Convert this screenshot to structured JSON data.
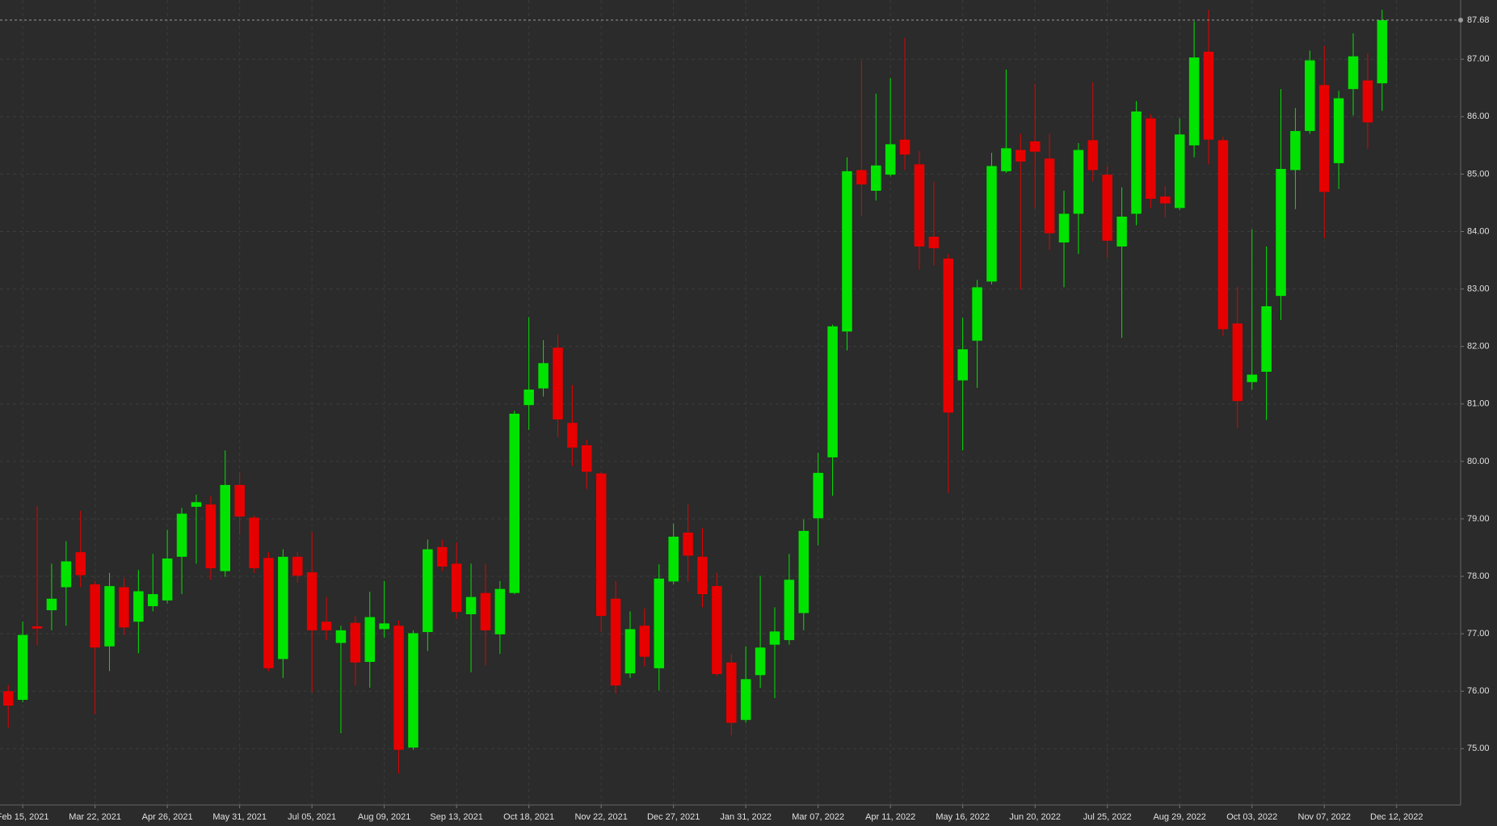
{
  "chart_data": {
    "type": "candlestick",
    "x": [
      "2021-02-08",
      "2021-02-15",
      "2021-02-22",
      "2021-03-01",
      "2021-03-08",
      "2021-03-15",
      "2021-03-22",
      "2021-03-29",
      "2021-04-05",
      "2021-04-12",
      "2021-04-19",
      "2021-04-26",
      "2021-05-03",
      "2021-05-10",
      "2021-05-17",
      "2021-05-24",
      "2021-05-31",
      "2021-06-07",
      "2021-06-14",
      "2021-06-21",
      "2021-06-28",
      "2021-07-05",
      "2021-07-12",
      "2021-07-19",
      "2021-07-26",
      "2021-08-02",
      "2021-08-09",
      "2021-08-16",
      "2021-08-23",
      "2021-08-30",
      "2021-09-06",
      "2021-09-13",
      "2021-09-20",
      "2021-09-27",
      "2021-10-04",
      "2021-10-11",
      "2021-10-18",
      "2021-10-25",
      "2021-11-01",
      "2021-11-08",
      "2021-11-15",
      "2021-11-22",
      "2021-11-29",
      "2021-12-06",
      "2021-12-13",
      "2021-12-20",
      "2021-12-27",
      "2022-01-03",
      "2022-01-10",
      "2022-01-17",
      "2022-01-24",
      "2022-01-31",
      "2022-02-07",
      "2022-02-14",
      "2022-02-21",
      "2022-02-28",
      "2022-03-07",
      "2022-03-14",
      "2022-03-21",
      "2022-03-28",
      "2022-04-04",
      "2022-04-11",
      "2022-04-18",
      "2022-04-25",
      "2022-05-02",
      "2022-05-09",
      "2022-05-16",
      "2022-05-23",
      "2022-05-30",
      "2022-06-06",
      "2022-06-13",
      "2022-06-20",
      "2022-06-27",
      "2022-07-04",
      "2022-07-11",
      "2022-07-18",
      "2022-07-25",
      "2022-08-01",
      "2022-08-08",
      "2022-08-15",
      "2022-08-22",
      "2022-08-29",
      "2022-09-05",
      "2022-09-12",
      "2022-09-19",
      "2022-09-26",
      "2022-10-03",
      "2022-10-10",
      "2022-10-17",
      "2022-10-24",
      "2022-10-31",
      "2022-11-07",
      "2022-11-14",
      "2022-11-21",
      "2022-11-28",
      "2022-12-05"
    ],
    "open": [
      76.0,
      75.85,
      77.13,
      77.41,
      77.81,
      78.42,
      77.86,
      76.78,
      77.81,
      77.21,
      77.48,
      77.58,
      78.34,
      79.21,
      79.25,
      78.09,
      79.59,
      79.02,
      78.32,
      76.56,
      78.34,
      78.07,
      77.21,
      76.84,
      77.19,
      76.51,
      77.08,
      77.14,
      75.02,
      77.03,
      78.51,
      78.22,
      77.34,
      77.71,
      76.99,
      77.71,
      80.98,
      81.27,
      81.98,
      80.67,
      80.28,
      79.79,
      77.61,
      76.31,
      77.14,
      76.4,
      77.91,
      78.76,
      78.34,
      77.83,
      76.5,
      75.5,
      76.28,
      76.81,
      76.89,
      77.36,
      79.01,
      80.07,
      82.26,
      85.07,
      84.71,
      84.99,
      85.6,
      85.17,
      83.91,
      83.53,
      81.41,
      82.1,
      83.13,
      85.05,
      85.42,
      85.57,
      85.27,
      83.81,
      84.31,
      85.59,
      84.99,
      83.74,
      84.31,
      85.97,
      84.61,
      84.41,
      85.5,
      87.13,
      85.59,
      82.4,
      81.38,
      81.56,
      82.88,
      85.07,
      85.75,
      86.55,
      85.19,
      86.48,
      86.63,
      86.58
    ],
    "high": [
      76.11,
      77.21,
      79.22,
      78.22,
      78.61,
      79.14,
      77.92,
      78.06,
      77.97,
      78.11,
      78.39,
      78.81,
      79.19,
      79.42,
      79.39,
      80.19,
      79.8,
      79.06,
      78.42,
      78.47,
      78.42,
      78.77,
      77.64,
      77.14,
      77.31,
      77.73,
      77.92,
      77.23,
      77.06,
      78.64,
      78.64,
      78.59,
      78.22,
      78.22,
      77.92,
      80.88,
      82.51,
      82.11,
      82.21,
      81.33,
      80.38,
      79.82,
      77.92,
      77.39,
      77.44,
      78.21,
      78.92,
      79.25,
      78.84,
      78.06,
      76.65,
      76.78,
      78.01,
      77.46,
      78.39,
      78.99,
      80.15,
      82.38,
      85.29,
      86.98,
      86.4,
      86.67,
      87.37,
      85.4,
      84.87,
      83.61,
      82.5,
      83.16,
      85.37,
      86.82,
      85.7,
      86.57,
      85.7,
      84.71,
      85.54,
      86.6,
      85.15,
      84.77,
      86.27,
      86.04,
      84.79,
      85.97,
      87.66,
      87.86,
      85.65,
      83.04,
      84.04,
      83.74,
      86.48,
      86.15,
      87.15,
      87.23,
      86.45,
      87.45,
      87.1,
      87.86
    ],
    "low": [
      75.37,
      75.81,
      76.8,
      77.06,
      77.14,
      77.81,
      75.6,
      76.35,
      76.98,
      76.66,
      77.39,
      77.53,
      77.69,
      78.22,
      77.94,
      77.99,
      78.72,
      78.06,
      76.35,
      76.23,
      77.89,
      75.98,
      76.89,
      75.27,
      76.1,
      76.06,
      76.93,
      74.57,
      74.98,
      76.7,
      78.09,
      77.26,
      76.33,
      76.45,
      76.65,
      77.69,
      80.55,
      81.13,
      80.42,
      79.92,
      79.52,
      77.03,
      75.96,
      76.23,
      76.43,
      76.01,
      77.86,
      77.91,
      77.46,
      76.26,
      75.23,
      75.45,
      76.06,
      75.88,
      76.81,
      77.06,
      78.54,
      79.4,
      81.93,
      84.26,
      84.54,
      84.96,
      85.07,
      83.34,
      83.41,
      79.45,
      80.19,
      81.28,
      83.08,
      85.02,
      82.99,
      84.41,
      83.68,
      83.03,
      83.61,
      84.87,
      83.54,
      82.15,
      84.11,
      84.41,
      84.24,
      84.37,
      85.29,
      85.17,
      82.18,
      80.58,
      81.25,
      80.72,
      82.46,
      84.39,
      85.7,
      83.88,
      84.74,
      86.02,
      85.44,
      86.1
    ],
    "close": [
      75.75,
      76.98,
      77.09,
      77.61,
      78.26,
      78.02,
      76.76,
      77.83,
      77.11,
      77.74,
      77.69,
      78.31,
      79.09,
      79.29,
      78.14,
      79.59,
      79.04,
      78.14,
      76.4,
      78.34,
      78.01,
      77.06,
      77.06,
      77.06,
      76.5,
      77.29,
      77.18,
      74.98,
      77.01,
      78.47,
      78.17,
      77.38,
      77.64,
      77.06,
      77.78,
      80.83,
      81.25,
      81.71,
      80.73,
      80.24,
      79.82,
      77.31,
      76.1,
      77.08,
      76.6,
      77.96,
      78.69,
      78.36,
      77.69,
      76.3,
      75.45,
      76.21,
      76.76,
      77.04,
      77.94,
      78.79,
      79.8,
      82.35,
      85.05,
      84.82,
      85.15,
      85.52,
      85.34,
      83.74,
      83.71,
      80.85,
      81.95,
      83.03,
      85.14,
      85.45,
      85.22,
      85.39,
      83.97,
      84.31,
      85.42,
      85.07,
      83.84,
      84.26,
      86.09,
      84.57,
      84.49,
      85.69,
      87.03,
      85.6,
      82.3,
      81.05,
      81.51,
      82.7,
      85.09,
      85.75,
      86.98,
      84.69,
      86.32,
      87.05,
      85.9,
      87.68
    ],
    "up_color": "#00e400",
    "down_color": "#e60000",
    "xlim": [
      "2021-02-04",
      "2023-01-12"
    ],
    "xticks": [
      {
        "value": "2021-02-15",
        "label": "Feb 15, 2021"
      },
      {
        "value": "2021-03-22",
        "label": "Mar 22, 2021"
      },
      {
        "value": "2021-04-26",
        "label": "Apr 26, 2021"
      },
      {
        "value": "2021-05-31",
        "label": "May 31, 2021"
      },
      {
        "value": "2021-07-05",
        "label": "Jul 05, 2021"
      },
      {
        "value": "2021-08-09",
        "label": "Aug 09, 2021"
      },
      {
        "value": "2021-09-13",
        "label": "Sep 13, 2021"
      },
      {
        "value": "2021-10-18",
        "label": "Oct 18, 2021"
      },
      {
        "value": "2021-11-22",
        "label": "Nov 22, 2021"
      },
      {
        "value": "2021-12-27",
        "label": "Dec 27, 2021"
      },
      {
        "value": "2022-01-31",
        "label": "Jan 31, 2022"
      },
      {
        "value": "2022-03-07",
        "label": "Mar 07, 2022"
      },
      {
        "value": "2022-04-11",
        "label": "Apr 11, 2022"
      },
      {
        "value": "2022-05-16",
        "label": "May 16, 2022"
      },
      {
        "value": "2022-06-20",
        "label": "Jun 20, 2022"
      },
      {
        "value": "2022-07-25",
        "label": "Jul 25, 2022"
      },
      {
        "value": "2022-08-29",
        "label": "Aug 29, 2022"
      },
      {
        "value": "2022-10-03",
        "label": "Oct 03, 2022"
      },
      {
        "value": "2022-11-07",
        "label": "Nov 07, 2022"
      },
      {
        "value": "2022-12-12",
        "label": "Dec 12, 2022"
      }
    ],
    "ylim": [
      74.02,
      88.03
    ],
    "yticks": [
      {
        "value": 75,
        "label": "75.00"
      },
      {
        "value": 76,
        "label": "76.00"
      },
      {
        "value": 77,
        "label": "77.00"
      },
      {
        "value": 78,
        "label": "78.00"
      },
      {
        "value": 79,
        "label": "79.00"
      },
      {
        "value": 80,
        "label": "80.00"
      },
      {
        "value": 81,
        "label": "81.00"
      },
      {
        "value": 82,
        "label": "82.00"
      },
      {
        "value": 83,
        "label": "83.00"
      },
      {
        "value": 84,
        "label": "84.00"
      },
      {
        "value": 85,
        "label": "85.00"
      },
      {
        "value": 86,
        "label": "86.00"
      },
      {
        "value": 87,
        "label": "87.00"
      }
    ],
    "last_price": {
      "value": 87.68,
      "label": "87.68"
    },
    "grid": true
  }
}
